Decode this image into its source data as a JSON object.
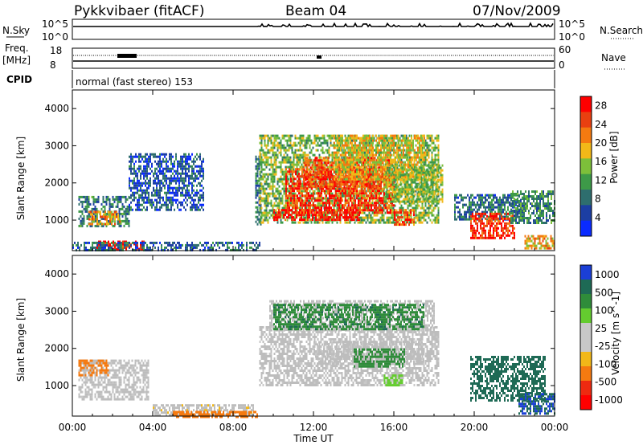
{
  "header": {
    "station": "Pykkvibaer (fitACF)",
    "beam": "Beam 04",
    "date": "07/Nov/2009"
  },
  "noise_panel": {
    "left_label": "N.Sky",
    "left_ticks": [
      "10^5",
      "10^0"
    ],
    "right_label": "N.Search",
    "right_ticks": [
      "10^5",
      "10^0"
    ]
  },
  "freq_panel": {
    "left_label_1": "Freq.",
    "left_label_2": "[MHz]",
    "left_ticks": [
      "18",
      "8"
    ],
    "right_label": "Nave",
    "right_ticks": [
      "60",
      "0"
    ]
  },
  "cpid": {
    "label": "CPID",
    "mode": "normal (fast stereo) 153"
  },
  "colors": {
    "power_scale": [
      "#0a2bff",
      "#1c3ea3",
      "#2e6e6e",
      "#3d9a48",
      "#7dbf3a",
      "#f2b818",
      "#f47a10",
      "#e94010",
      "#ff0000"
    ],
    "velocity_scale": [
      "#1b3fd6",
      "#1e6a55",
      "#2f8c3a",
      "#64cc2f",
      "#c8c8c8",
      "#c8c8c8",
      "#f2b818",
      "#f57a10",
      "#ee2a10",
      "#ff0000"
    ],
    "ground_scatter": "#bdbdbd"
  },
  "chart_data": [
    {
      "type": "heatmap",
      "title": "",
      "xlabel": "Time UT",
      "ylabel": "Slant Range [km]",
      "colorbar_label": "Power [dB]",
      "x_tick_labels": [
        "00:00",
        "04:00",
        "08:00",
        "12:00",
        "16:00",
        "20:00",
        "00:00"
      ],
      "y_tick_labels": [
        "1000",
        "2000",
        "3000",
        "4000"
      ],
      "colorbar_ticks": [
        "4",
        "8",
        "12",
        "16",
        "20",
        "24",
        "28"
      ],
      "xlim_hours": [
        0,
        24
      ],
      "ylim_km": [
        180,
        4500
      ],
      "clim": [
        0,
        30
      ],
      "regions": [
        {
          "t": [
            0.3,
            2.8
          ],
          "r": [
            850,
            1650
          ],
          "v": 9
        },
        {
          "t": [
            0.8,
            2.4
          ],
          "r": [
            900,
            1250
          ],
          "v": 20
        },
        {
          "t": [
            1.2,
            3.6
          ],
          "r": [
            250,
            450
          ],
          "v": 27
        },
        {
          "t": [
            0.0,
            9.3
          ],
          "r": [
            180,
            420
          ],
          "v": 7
        },
        {
          "t": [
            2.8,
            6.5
          ],
          "r": [
            1300,
            2800
          ],
          "v": 6
        },
        {
          "t": [
            9.1,
            9.4
          ],
          "r": [
            900,
            2800
          ],
          "v": 8
        },
        {
          "t": [
            9.3,
            18.2
          ],
          "r": [
            950,
            3300
          ],
          "v": 14
        },
        {
          "t": [
            10.0,
            14.3
          ],
          "r": [
            1000,
            1300
          ],
          "v": 28
        },
        {
          "t": [
            10.6,
            16.0
          ],
          "r": [
            1200,
            2400
          ],
          "v": 26
        },
        {
          "t": [
            11.5,
            15.8
          ],
          "r": [
            1900,
            2700
          ],
          "v": 24
        },
        {
          "t": [
            13.0,
            17.5
          ],
          "r": [
            2100,
            3300
          ],
          "v": 18
        },
        {
          "t": [
            15.5,
            18.4
          ],
          "r": [
            1500,
            2500
          ],
          "v": 15
        },
        {
          "t": [
            16.0,
            17.0
          ],
          "r": [
            900,
            1300
          ],
          "v": 24
        },
        {
          "t": [
            19.0,
            22.5
          ],
          "r": [
            1050,
            1700
          ],
          "v": 8
        },
        {
          "t": [
            19.8,
            22.0
          ],
          "r": [
            500,
            1200
          ],
          "v": 26
        },
        {
          "t": [
            21.8,
            24.0
          ],
          "r": [
            900,
            1800
          ],
          "v": 10
        },
        {
          "t": [
            22.5,
            24.0
          ],
          "r": [
            250,
            600
          ],
          "v": 20
        }
      ]
    },
    {
      "type": "heatmap",
      "title": "",
      "xlabel": "Time UT",
      "ylabel": "Slant Range [km]",
      "colorbar_label": "Velocity [m s^-1]",
      "x_tick_labels": [
        "00:00",
        "04:00",
        "08:00",
        "12:00",
        "16:00",
        "20:00",
        "00:00"
      ],
      "y_tick_labels": [
        "1000",
        "2000",
        "3000",
        "4000"
      ],
      "colorbar_ticks": [
        "1000",
        "500",
        "100",
        "25",
        "-25",
        "-100",
        "-500",
        "-1000"
      ],
      "xlim_hours": [
        0,
        24
      ],
      "ylim_km": [
        180,
        4500
      ],
      "clim": [
        -1000,
        1000
      ],
      "regions": [
        {
          "t": [
            0.3,
            3.8
          ],
          "r": [
            600,
            1700
          ],
          "v": 0,
          "gs": true
        },
        {
          "t": [
            4.0,
            9.0
          ],
          "r": [
            180,
            500
          ],
          "v": -50,
          "gs": true
        },
        {
          "t": [
            5.0,
            9.2
          ],
          "r": [
            180,
            320
          ],
          "v": -150
        },
        {
          "t": [
            9.3,
            18.2
          ],
          "r": [
            1000,
            2600
          ],
          "v": 0,
          "gs": true
        },
        {
          "t": [
            9.8,
            18.0
          ],
          "r": [
            2500,
            3300
          ],
          "v": 0,
          "gs": true
        },
        {
          "t": [
            12.0,
            17.5
          ],
          "r": [
            1600,
            2200
          ],
          "v": 0,
          "gs": true
        },
        {
          "t": [
            10.0,
            17.5
          ],
          "r": [
            2500,
            3200
          ],
          "v": 250
        },
        {
          "t": [
            14.0,
            16.5
          ],
          "r": [
            1500,
            2000
          ],
          "v": 150
        },
        {
          "t": [
            15.5,
            16.4
          ],
          "r": [
            1000,
            1300
          ],
          "v": 60
        },
        {
          "t": [
            19.8,
            23.5
          ],
          "r": [
            600,
            1800
          ],
          "v": 500
        },
        {
          "t": [
            22.2,
            24.0
          ],
          "r": [
            250,
            800
          ],
          "v": 700
        },
        {
          "t": [
            0.3,
            1.8
          ],
          "r": [
            1300,
            1700
          ],
          "v": -200
        }
      ]
    }
  ]
}
